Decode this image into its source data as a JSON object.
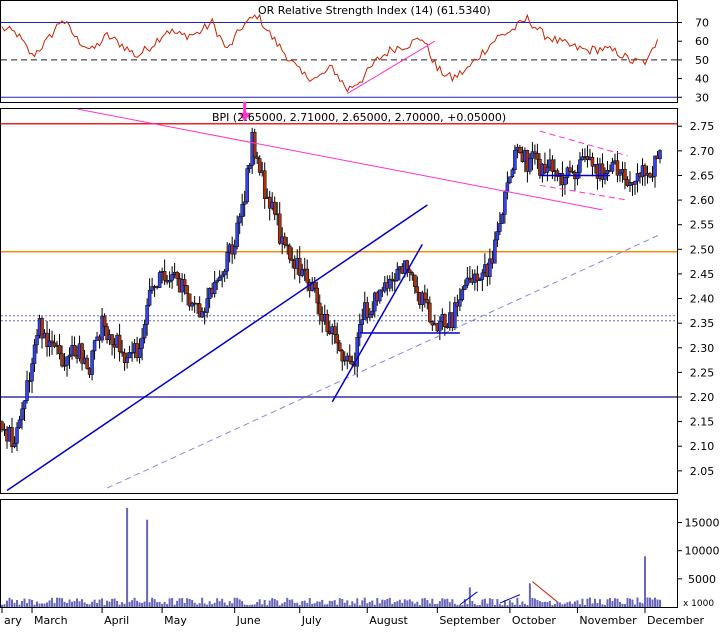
{
  "chart_data": [
    {
      "type": "line",
      "panel": "rsi",
      "title": "OR Relative Strength Index (14) (61.5340)",
      "y_ticks": [
        30,
        40,
        50,
        60,
        70
      ],
      "ylim": [
        28,
        81
      ],
      "reference_lines": [
        {
          "y": 70,
          "style": "solid",
          "color": "#2222aa"
        },
        {
          "y": 50,
          "style": "dashed",
          "color": "#222222"
        },
        {
          "y": 30,
          "style": "solid",
          "color": "#2222aa"
        }
      ],
      "series": [
        {
          "color": "#cc2200",
          "x_day": [
            0,
            6,
            12,
            18,
            24,
            30,
            36,
            42,
            48,
            54,
            60,
            66,
            72,
            78,
            84,
            90,
            96,
            102,
            108,
            114,
            120,
            126,
            132,
            138,
            144,
            150,
            156,
            162,
            168,
            174,
            180,
            186,
            192,
            198,
            204,
            210,
            216,
            222,
            228,
            234,
            240,
            246,
            252,
            258,
            262
          ],
          "values": [
            67,
            64,
            52,
            60,
            72,
            61,
            55,
            63,
            58,
            52,
            58,
            66,
            63,
            64,
            70,
            55,
            68,
            74,
            62,
            52,
            42,
            40,
            46,
            34,
            40,
            50,
            56,
            58,
            62,
            45,
            40,
            45,
            54,
            62,
            66,
            72,
            64,
            60,
            57,
            55,
            56,
            54,
            49,
            49,
            61
          ]
        }
      ],
      "trendlines": [
        {
          "color": "#ff33cc",
          "points": [
            [
              138,
              32
            ],
            [
              173,
              60
            ]
          ]
        }
      ]
    },
    {
      "type": "candlestick",
      "panel": "price",
      "title": "BPI (2.65000, 2.71000, 2.65000, 2.70000, +0.05000)",
      "y_ticks": [
        2.05,
        2.1,
        2.15,
        2.2,
        2.25,
        2.3,
        2.35,
        2.4,
        2.45,
        2.5,
        2.55,
        2.6,
        2.65,
        2.7,
        2.75
      ],
      "ylim": [
        2.005,
        2.785
      ],
      "x_months": [
        "ary",
        "March",
        "April",
        "May",
        "June",
        "July",
        "August",
        "September",
        "October",
        "November",
        "December"
      ],
      "x_month_day": [
        0,
        12,
        40,
        64,
        93,
        119,
        146,
        174,
        203,
        230,
        257
      ],
      "x_day_range": [
        0,
        263
      ],
      "close_series_day": [
        0,
        5,
        10,
        15,
        20,
        25,
        30,
        35,
        40,
        45,
        50,
        55,
        60,
        65,
        70,
        75,
        80,
        85,
        90,
        95,
        100,
        105,
        110,
        115,
        120,
        125,
        130,
        135,
        140,
        145,
        150,
        155,
        160,
        165,
        170,
        175,
        180,
        185,
        190,
        195,
        200,
        205,
        210,
        215,
        220,
        225,
        230,
        235,
        240,
        245,
        250,
        255,
        260,
        263
      ],
      "close_series": [
        2.15,
        2.1,
        2.22,
        2.35,
        2.3,
        2.28,
        2.3,
        2.26,
        2.35,
        2.32,
        2.28,
        2.3,
        2.42,
        2.45,
        2.43,
        2.4,
        2.38,
        2.42,
        2.48,
        2.55,
        2.72,
        2.62,
        2.55,
        2.47,
        2.46,
        2.42,
        2.34,
        2.3,
        2.26,
        2.38,
        2.4,
        2.44,
        2.47,
        2.42,
        2.38,
        2.35,
        2.36,
        2.43,
        2.45,
        2.46,
        2.58,
        2.7,
        2.68,
        2.67,
        2.66,
        2.64,
        2.67,
        2.69,
        2.65,
        2.66,
        2.64,
        2.65,
        2.66,
        2.7
      ],
      "horizontal_lines": [
        {
          "y": 2.755,
          "color": "#ee2222"
        },
        {
          "y": 2.495,
          "color": "#ff8800"
        },
        {
          "y": 2.365,
          "color": "#6666cc",
          "style": "dotted"
        },
        {
          "y": 2.355,
          "color": "#6666cc",
          "style": "dotted"
        },
        {
          "y": 2.2,
          "color": "#3333aa"
        }
      ],
      "trendlines": [
        {
          "color": "#ff33cc",
          "points": [
            [
              30,
              2.785
            ],
            [
              240,
              2.58
            ]
          ]
        },
        {
          "color": "#0000cc",
          "points": [
            [
              2,
              2.01
            ],
            [
              170,
              2.59
            ]
          ]
        },
        {
          "color": "#8888dd",
          "style": "dashed",
          "points": [
            [
              42,
              2.015
            ],
            [
              263,
              2.53
            ]
          ]
        },
        {
          "color": "#0000cc",
          "points": [
            [
              132,
              2.19
            ],
            [
              168,
              2.51
            ]
          ]
        },
        {
          "color": "#0000cc",
          "points": [
            [
              143,
              2.33
            ],
            [
              183,
              2.33
            ]
          ]
        },
        {
          "color": "#0000cc",
          "points": [
            [
              215,
              2.65
            ],
            [
              243,
              2.65
            ]
          ]
        },
        {
          "color": "#ff33cc",
          "style": "dashed",
          "points": [
            [
              215,
              2.74
            ],
            [
              250,
              2.69
            ]
          ]
        },
        {
          "color": "#ff33cc",
          "style": "dashed",
          "points": [
            [
              215,
              2.63
            ],
            [
              250,
              2.6
            ]
          ]
        }
      ],
      "annotations": [
        {
          "type": "arrow",
          "color": "#ff33cc",
          "x_day": 97,
          "y": 2.755
        }
      ]
    },
    {
      "type": "bar",
      "panel": "volume",
      "y_ticks": [
        5000,
        10000,
        15000
      ],
      "ylim": [
        0,
        19000
      ],
      "unit_label": "x 1000",
      "color": "#6666bb",
      "spikes": [
        {
          "x_day": 50,
          "value": 17600
        },
        {
          "x_day": 58,
          "value": 15500
        },
        {
          "x_day": 187,
          "value": 3500
        },
        {
          "x_day": 211,
          "value": 4200
        },
        {
          "x_day": 257,
          "value": 9000
        }
      ],
      "trendlines": [
        {
          "color": "#0000cc",
          "points": [
            [
              183,
              400
            ],
            [
              190,
              2700
            ]
          ]
        },
        {
          "color": "#0000cc",
          "points": [
            [
              199,
              700
            ],
            [
              207,
              2200
            ]
          ]
        },
        {
          "color": "#cc2200",
          "points": [
            [
              212,
              4500
            ],
            [
              222,
              900
            ]
          ]
        }
      ]
    }
  ]
}
